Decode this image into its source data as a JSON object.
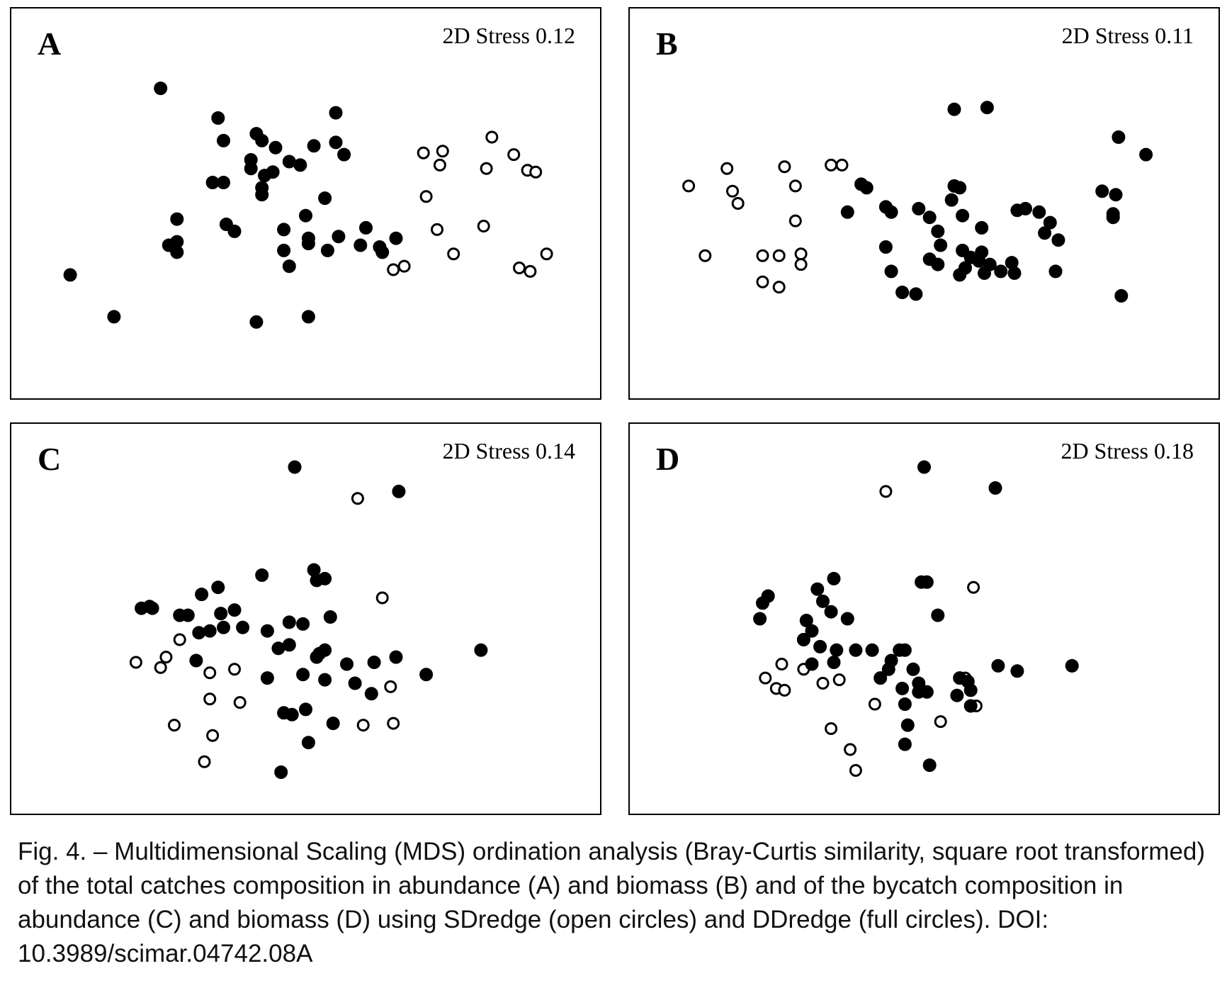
{
  "caption": "Fig. 4. – Multidimensional Scaling (MDS) ordination analysis (Bray-Curtis similarity, square root transformed) of the total catches composition in abundance (A) and biomass (B) and of the bycatch composition in abundance (C) and biomass (D) using SDredge (open circles) and DDredge (full circles). DOI: 10.3989/scimar.04742.08A",
  "colors": {
    "marker": "#000000",
    "frame": "#000000",
    "background": "#ffffff"
  },
  "chart_data": [
    {
      "type": "scatter",
      "panel": "A",
      "stress_label": "2D Stress 0.12",
      "xlim": [
        0,
        100
      ],
      "ylim": [
        0,
        100
      ],
      "series": [
        {
          "marker": "open",
          "points": [
            [
              88.0,
              64.0
            ],
            [
              84.0,
              69.0
            ],
            [
              83.0,
              60.0
            ],
            [
              90.5,
              59.5
            ],
            [
              71.5,
              64.5
            ],
            [
              74.5,
              61.0
            ],
            [
              75.0,
              65.0
            ],
            [
              72.0,
              52.0
            ],
            [
              74.0,
              42.5
            ],
            [
              82.5,
              43.5
            ],
            [
              77.0,
              35.5
            ],
            [
              92.0,
              59.0
            ],
            [
              94.0,
              35.5
            ],
            [
              68.0,
              32.0
            ],
            [
              66.0,
              31.0
            ],
            [
              89.0,
              31.5
            ],
            [
              91.0,
              30.5
            ]
          ]
        },
        {
          "marker": "filled",
          "points": [
            [
              23.5,
              83.0
            ],
            [
              7.0,
              29.5
            ],
            [
              15.0,
              17.5
            ],
            [
              34.0,
              74.5
            ],
            [
              35.0,
              68.0
            ],
            [
              41.0,
              70.0
            ],
            [
              42.0,
              68.0
            ],
            [
              40.0,
              62.5
            ],
            [
              40.0,
              60.0
            ],
            [
              42.5,
              58.0
            ],
            [
              44.0,
              59.0
            ],
            [
              44.5,
              66.0
            ],
            [
              47.0,
              62.0
            ],
            [
              49.0,
              61.0
            ],
            [
              51.5,
              66.5
            ],
            [
              55.5,
              76.0
            ],
            [
              55.5,
              67.5
            ],
            [
              57.0,
              64.0
            ],
            [
              33.0,
              56.0
            ],
            [
              35.0,
              56.0
            ],
            [
              42.0,
              54.5
            ],
            [
              42.0,
              52.5
            ],
            [
              53.5,
              51.5
            ],
            [
              50.0,
              46.5
            ],
            [
              26.5,
              45.5
            ],
            [
              35.5,
              44.0
            ],
            [
              37.0,
              42.0
            ],
            [
              25.0,
              38.0
            ],
            [
              26.5,
              39.0
            ],
            [
              26.5,
              36.0
            ],
            [
              46.0,
              42.5
            ],
            [
              50.5,
              40.0
            ],
            [
              50.5,
              38.5
            ],
            [
              56.0,
              40.5
            ],
            [
              46.0,
              36.5
            ],
            [
              54.0,
              36.5
            ],
            [
              61.0,
              43.0
            ],
            [
              60.0,
              38.0
            ],
            [
              63.5,
              37.5
            ],
            [
              64.0,
              36.0
            ],
            [
              66.5,
              40.0
            ],
            [
              47.0,
              32.0
            ],
            [
              41.0,
              16.0
            ],
            [
              50.5,
              17.5
            ]
          ]
        }
      ]
    },
    {
      "type": "scatter",
      "panel": "B",
      "stress_label": "2D Stress 0.11",
      "xlim": [
        0,
        100
      ],
      "ylim": [
        0,
        100
      ],
      "series": [
        {
          "marker": "open",
          "points": [
            [
              7.0,
              55.0
            ],
            [
              14.0,
              60.0
            ],
            [
              15.0,
              53.5
            ],
            [
              16.0,
              50.0
            ],
            [
              24.5,
              60.5
            ],
            [
              26.5,
              55.0
            ],
            [
              26.5,
              45.0
            ],
            [
              10.0,
              35.0
            ],
            [
              20.5,
              35.0
            ],
            [
              23.5,
              35.0
            ],
            [
              27.5,
              35.5
            ],
            [
              27.5,
              32.5
            ],
            [
              20.5,
              27.5
            ],
            [
              23.5,
              26.0
            ],
            [
              33.0,
              61.0
            ],
            [
              35.0,
              61.0
            ]
          ]
        },
        {
          "marker": "filled",
          "points": [
            [
              55.5,
              77.0
            ],
            [
              61.5,
              77.5
            ],
            [
              85.5,
              69.0
            ],
            [
              90.5,
              64.0
            ],
            [
              38.5,
              55.5
            ],
            [
              39.5,
              54.5
            ],
            [
              36.0,
              47.5
            ],
            [
              43.0,
              49.0
            ],
            [
              44.0,
              47.5
            ],
            [
              49.0,
              48.5
            ],
            [
              51.0,
              46.0
            ],
            [
              55.0,
              51.0
            ],
            [
              55.5,
              55.0
            ],
            [
              56.5,
              54.5
            ],
            [
              57.0,
              46.5
            ],
            [
              60.5,
              43.0
            ],
            [
              52.5,
              42.0
            ],
            [
              53.0,
              38.0
            ],
            [
              51.0,
              34.0
            ],
            [
              52.5,
              32.5
            ],
            [
              57.0,
              36.5
            ],
            [
              57.5,
              31.5
            ],
            [
              58.5,
              34.5
            ],
            [
              60.0,
              33.5
            ],
            [
              60.5,
              36.0
            ],
            [
              62.0,
              32.5
            ],
            [
              61.0,
              30.0
            ],
            [
              64.0,
              30.5
            ],
            [
              66.0,
              33.0
            ],
            [
              66.5,
              30.0
            ],
            [
              43.0,
              37.5
            ],
            [
              44.0,
              30.5
            ],
            [
              46.0,
              24.5
            ],
            [
              48.5,
              24.0
            ],
            [
              56.5,
              29.5
            ],
            [
              67.0,
              48.0
            ],
            [
              68.5,
              48.5
            ],
            [
              72.0,
              41.5
            ],
            [
              74.5,
              39.5
            ],
            [
              74.0,
              30.5
            ],
            [
              73.0,
              44.5
            ],
            [
              82.5,
              53.5
            ],
            [
              85.0,
              52.5
            ],
            [
              84.5,
              47.0
            ],
            [
              84.5,
              46.0
            ],
            [
              86.0,
              23.5
            ],
            [
              71.0,
              47.5
            ]
          ]
        }
      ]
    },
    {
      "type": "scatter",
      "panel": "C",
      "stress_label": "2D Stress 0.14",
      "xlim": [
        0,
        100
      ],
      "ylim": [
        0,
        100
      ],
      "series": [
        {
          "marker": "open",
          "points": [
            [
              59.5,
              84.5
            ],
            [
              64.0,
              56.0
            ],
            [
              27.0,
              44.0
            ],
            [
              24.5,
              39.0
            ],
            [
              19.0,
              37.5
            ],
            [
              23.5,
              36.0
            ],
            [
              32.5,
              34.5
            ],
            [
              37.0,
              35.5
            ],
            [
              32.5,
              27.0
            ],
            [
              38.0,
              26.0
            ],
            [
              65.5,
              30.5
            ],
            [
              26.0,
              19.5
            ],
            [
              33.0,
              16.5
            ],
            [
              31.5,
              9.0
            ],
            [
              60.5,
              19.5
            ],
            [
              66.0,
              20.0
            ]
          ]
        },
        {
          "marker": "filled",
          "points": [
            [
              48.0,
              93.5
            ],
            [
              67.0,
              86.5
            ],
            [
              42.0,
              62.5
            ],
            [
              51.5,
              64.0
            ],
            [
              52.0,
              61.0
            ],
            [
              53.5,
              61.5
            ],
            [
              31.0,
              57.0
            ],
            [
              34.0,
              59.0
            ],
            [
              20.0,
              53.0
            ],
            [
              21.5,
              53.5
            ],
            [
              22.0,
              53.0
            ],
            [
              27.0,
              51.0
            ],
            [
              28.5,
              51.0
            ],
            [
              34.5,
              51.5
            ],
            [
              37.0,
              52.5
            ],
            [
              54.5,
              50.5
            ],
            [
              30.5,
              46.0
            ],
            [
              32.5,
              46.5
            ],
            [
              35.0,
              47.5
            ],
            [
              38.5,
              47.5
            ],
            [
              43.0,
              46.5
            ],
            [
              47.0,
              49.0
            ],
            [
              49.5,
              48.5
            ],
            [
              45.0,
              41.5
            ],
            [
              47.0,
              42.5
            ],
            [
              52.5,
              40.0
            ],
            [
              53.5,
              41.0
            ],
            [
              52.0,
              39.0
            ],
            [
              30.0,
              38.0
            ],
            [
              43.0,
              33.0
            ],
            [
              49.5,
              34.0
            ],
            [
              53.5,
              32.5
            ],
            [
              57.5,
              37.0
            ],
            [
              62.5,
              37.5
            ],
            [
              59.0,
              31.5
            ],
            [
              62.0,
              28.5
            ],
            [
              66.5,
              39.0
            ],
            [
              72.0,
              34.0
            ],
            [
              46.0,
              23.0
            ],
            [
              47.5,
              22.5
            ],
            [
              50.0,
              24.0
            ],
            [
              55.0,
              20.0
            ],
            [
              50.5,
              14.5
            ],
            [
              45.5,
              6.0
            ],
            [
              82.0,
              41.0
            ]
          ]
        }
      ]
    },
    {
      "type": "scatter",
      "panel": "D",
      "stress_label": "2D Stress 0.18",
      "xlim": [
        0,
        100
      ],
      "ylim": [
        0,
        100
      ],
      "series": [
        {
          "marker": "open",
          "points": [
            [
              43.0,
              86.5
            ],
            [
              59.0,
              59.0
            ],
            [
              24.0,
              37.0
            ],
            [
              28.0,
              35.5
            ],
            [
              21.0,
              33.0
            ],
            [
              23.0,
              30.0
            ],
            [
              24.5,
              29.5
            ],
            [
              31.5,
              31.5
            ],
            [
              34.5,
              32.5
            ],
            [
              57.5,
              33.0
            ],
            [
              41.0,
              25.5
            ],
            [
              59.5,
              25.0
            ],
            [
              53.0,
              20.5
            ],
            [
              33.0,
              18.5
            ],
            [
              36.5,
              12.5
            ],
            [
              37.5,
              6.5
            ]
          ]
        },
        {
          "marker": "filled",
          "points": [
            [
              50.0,
              93.5
            ],
            [
              63.0,
              87.5
            ],
            [
              33.5,
              61.5
            ],
            [
              49.5,
              60.5
            ],
            [
              50.5,
              60.5
            ],
            [
              30.5,
              58.5
            ],
            [
              21.5,
              56.5
            ],
            [
              20.5,
              54.5
            ],
            [
              31.5,
              55.0
            ],
            [
              33.0,
              52.0
            ],
            [
              36.0,
              50.0
            ],
            [
              52.5,
              51.0
            ],
            [
              28.5,
              49.5
            ],
            [
              20.0,
              50.0
            ],
            [
              29.5,
              46.5
            ],
            [
              28.0,
              44.0
            ],
            [
              31.0,
              42.0
            ],
            [
              34.0,
              41.0
            ],
            [
              37.5,
              41.0
            ],
            [
              40.5,
              41.0
            ],
            [
              45.5,
              41.0
            ],
            [
              46.5,
              41.0
            ],
            [
              44.0,
              38.0
            ],
            [
              43.5,
              35.5
            ],
            [
              48.0,
              35.5
            ],
            [
              29.5,
              37.0
            ],
            [
              33.5,
              37.5
            ],
            [
              42.0,
              33.0
            ],
            [
              46.0,
              30.0
            ],
            [
              49.0,
              31.5
            ],
            [
              49.0,
              29.0
            ],
            [
              50.5,
              29.0
            ],
            [
              56.5,
              33.0
            ],
            [
              58.0,
              32.0
            ],
            [
              58.5,
              29.5
            ],
            [
              56.0,
              28.0
            ],
            [
              58.5,
              25.0
            ],
            [
              63.5,
              36.5
            ],
            [
              67.0,
              35.0
            ],
            [
              77.0,
              36.5
            ],
            [
              46.5,
              25.5
            ],
            [
              47.0,
              19.5
            ],
            [
              46.5,
              14.0
            ],
            [
              51.0,
              8.0
            ]
          ]
        }
      ]
    }
  ]
}
